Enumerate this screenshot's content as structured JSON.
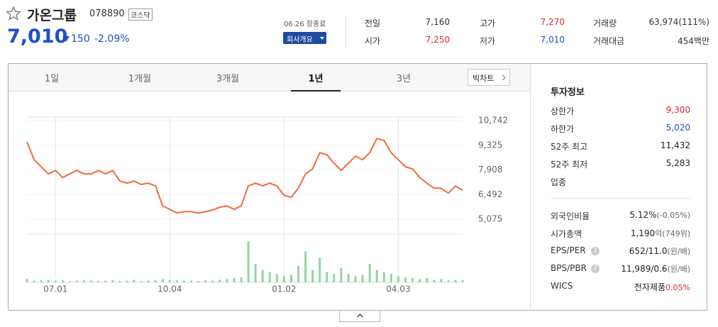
{
  "header": {
    "name": "가온그룹",
    "code": "078890",
    "market": "코스닥",
    "price": "7,010",
    "change": "150",
    "change_rate": "-2.09%",
    "status": "06.26 장종료",
    "company_button": "회사개요"
  },
  "quote": [
    {
      "label": "전일",
      "value": "7,160"
    },
    {
      "label": "고가",
      "value": "7,270",
      "color": "#e0282f"
    },
    {
      "label": "거래량",
      "value": "63,974(111%)"
    },
    {
      "label": "시가",
      "value": "7,250",
      "color": "#e0282f"
    },
    {
      "label": "저가",
      "value": "7,010",
      "color": "#1f4fc9"
    },
    {
      "label": "거래대금",
      "value": "454백만"
    }
  ],
  "tabs": {
    "items": [
      "1일",
      "1개월",
      "3개월",
      "1년",
      "3년"
    ],
    "active": 3,
    "bigchart": "빅차트"
  },
  "info": {
    "title": "투자정보",
    "rows": [
      {
        "label": "상한가",
        "value": "9,300",
        "color": "#e0282f"
      },
      {
        "label": "하한가",
        "value": "5,020",
        "color": "#1f4fc9"
      },
      {
        "label": "52주 최고",
        "value": "11,432"
      },
      {
        "label": "52주 최저",
        "value": "5,283"
      },
      {
        "label": "업종"
      }
    ],
    "rows2": [
      {
        "label": "외국인비율",
        "value": "5.12%",
        "extra": "(-0.05%)"
      },
      {
        "label": "시가총액",
        "value": "1,190",
        "extra": "억(749위)"
      },
      {
        "label": "EPS/PER",
        "help": "?",
        "value": "652/11.0",
        "extra": "(원/배)"
      },
      {
        "label": "BPS/PBR",
        "help": "?",
        "value": "11,989/0.6",
        "extra": "(원/배)"
      },
      {
        "label": "WICS",
        "value": "전자제품",
        "extra": "0.05%",
        "extra_color": "#e0282f"
      }
    ]
  },
  "chart_data": {
    "type": "line",
    "categories": [
      null,
      null,
      null,
      null,
      "07.01",
      null,
      null,
      null,
      null,
      null,
      null,
      null,
      null,
      null,
      null,
      null,
      null,
      null,
      null,
      null,
      "10.04",
      null,
      null,
      null,
      null,
      null,
      null,
      null,
      null,
      null,
      null,
      null,
      null,
      null,
      null,
      null,
      "01.02",
      null,
      null,
      null,
      null,
      null,
      null,
      null,
      null,
      null,
      null,
      null,
      null,
      null,
      null,
      null,
      "04.03",
      null,
      null,
      null,
      null,
      null,
      null,
      null,
      null,
      null
    ],
    "series": [
      {
        "color": "#f26b3a",
        "values": [
          9520,
          8500,
          8090,
          7680,
          7880,
          7470,
          7680,
          7880,
          7680,
          7680,
          7880,
          7680,
          7880,
          7270,
          7150,
          7270,
          7070,
          7150,
          6990,
          5840,
          5640,
          5430,
          5510,
          5510,
          5430,
          5510,
          5600,
          5760,
          5840,
          5640,
          5840,
          6990,
          7150,
          6990,
          7150,
          6990,
          6450,
          6330,
          6860,
          7680,
          7970,
          8900,
          8780,
          8290,
          7880,
          8290,
          8700,
          8500,
          8900,
          9720,
          9600,
          8900,
          8500,
          8090,
          7970,
          7470,
          7150,
          6860,
          6860,
          6580,
          6990,
          6740
        ]
      },
      {
        "color": "#8fd6a0",
        "axis": "y2",
        "values": [
          8,
          4,
          5,
          6,
          4,
          5,
          3,
          4,
          5,
          4,
          3,
          4,
          5,
          3,
          4,
          6,
          3,
          4,
          5,
          8,
          6,
          5,
          4,
          4,
          3,
          5,
          4,
          6,
          8,
          10,
          12,
          100,
          45,
          30,
          25,
          20,
          15,
          18,
          40,
          75,
          30,
          60,
          25,
          20,
          35,
          20,
          15,
          18,
          45,
          30,
          25,
          20,
          15,
          12,
          10,
          8,
          10,
          6,
          8,
          5,
          6,
          5
        ]
      }
    ],
    "ylim": [
      4220,
      10950
    ],
    "yticks": [
      {
        "value": 10742,
        "label": "10,742"
      },
      {
        "value": 9325,
        "label": "9,325"
      },
      {
        "value": 7908,
        "label": "7,908"
      },
      {
        "value": 6492,
        "label": "6,492"
      },
      {
        "value": 5075,
        "label": "5,075"
      }
    ],
    "y2lim": [
      0,
      100
    ],
    "grid": true
  }
}
